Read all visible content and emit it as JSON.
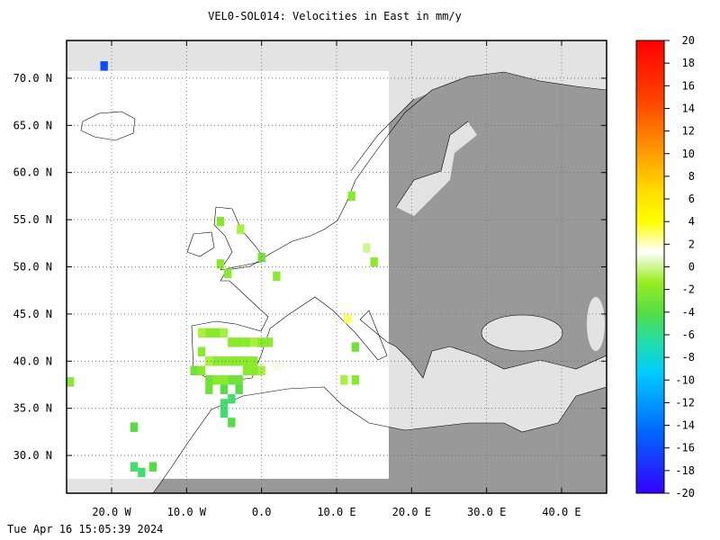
{
  "chart_data": {
    "type": "heatmap-map",
    "title": "VEL0-SOL014: Velocities in East in mm/y",
    "footer": "Tue Apr 16 15:05:39 2024",
    "xlim": [
      -26,
      46
    ],
    "ylim": [
      26,
      74
    ],
    "xticks": [
      {
        "value": -20,
        "label": "20.0 W"
      },
      {
        "value": -10,
        "label": "10.0 W"
      },
      {
        "value": 0,
        "label": "0.0"
      },
      {
        "value": 10,
        "label": "10.0 E"
      },
      {
        "value": 20,
        "label": "20.0 E"
      },
      {
        "value": 30,
        "label": "30.0 E"
      },
      {
        "value": 40,
        "label": "40.0 E"
      }
    ],
    "yticks": [
      {
        "value": 30,
        "label": "30.0 N"
      },
      {
        "value": 35,
        "label": "35.0 N"
      },
      {
        "value": 40,
        "label": "40.0 N"
      },
      {
        "value": 45,
        "label": "45.0 N"
      },
      {
        "value": 50,
        "label": "50.0 N"
      },
      {
        "value": 55,
        "label": "55.0 N"
      },
      {
        "value": 60,
        "label": "60.0 N"
      },
      {
        "value": 65,
        "label": "65.0 N"
      },
      {
        "value": 70,
        "label": "70.0 N"
      }
    ],
    "grid": true,
    "colorbar": {
      "lim": [
        -20,
        20
      ],
      "ticks": [
        20,
        18,
        16,
        14,
        12,
        10,
        8,
        6,
        4,
        2,
        0,
        -2,
        -4,
        -6,
        -8,
        -10,
        -12,
        -14,
        -16,
        -18,
        -20
      ],
      "colors": [
        "#3300ff",
        "#1a33ff",
        "#0066ff",
        "#0099ff",
        "#00ccff",
        "#22ddaa",
        "#55dd44",
        "#99ee22",
        "#ffffff",
        "#ffff00",
        "#ffdd00",
        "#ffaa00",
        "#ff7700",
        "#ff4400",
        "#ff2200",
        "#ff0000"
      ]
    },
    "cells": {
      "lon": [
        -21,
        -25.5,
        -17,
        -16,
        -14.5,
        -17,
        -5,
        -4,
        -5.5,
        -2.8,
        -5.5,
        -4.5,
        0,
        2,
        11,
        11.5,
        12,
        15,
        14,
        12.5,
        12.5,
        11,
        -8,
        -7,
        -6,
        -5,
        -4,
        -3,
        -2,
        -1,
        0,
        1,
        -8,
        -7,
        -6,
        -5,
        -4,
        -3,
        -2,
        -1,
        0,
        -8,
        -7,
        -6,
        -5,
        -4,
        -3,
        -2,
        -1,
        2,
        -9,
        -7,
        -5,
        -3,
        -4,
        -5
      ],
      "lat": [
        71.3,
        37.8,
        28.8,
        28.2,
        28.8,
        33,
        34.5,
        33.5,
        54.8,
        54,
        50.3,
        49.3,
        51,
        49,
        46,
        44.5,
        57.5,
        50.5,
        52,
        41.5,
        38,
        38,
        43,
        43,
        43,
        43,
        42,
        42,
        42,
        42,
        42,
        42,
        41,
        40,
        40,
        40,
        40,
        40,
        40,
        40,
        39,
        39,
        38,
        38,
        38,
        38,
        38,
        39,
        39,
        39.5,
        39,
        37,
        37,
        37,
        36,
        35.5
      ],
      "values": [
        -16,
        -2,
        -5,
        -5,
        -4,
        -4,
        -5,
        -4,
        -2,
        -1,
        -2,
        -2,
        -3,
        -2,
        1.5,
        3,
        -2,
        -2,
        0,
        -3,
        -2,
        -1,
        -1,
        -2,
        -2,
        -1,
        -2,
        -2,
        -2,
        -1,
        -2,
        -2,
        -2,
        -1,
        -2,
        -2,
        -2,
        -2,
        -2,
        -2,
        -1,
        -2,
        -3,
        -2,
        -2,
        -3,
        -3,
        -2,
        -2,
        1,
        -3,
        -3,
        -4,
        -4,
        -5,
        -5
      ]
    }
  }
}
